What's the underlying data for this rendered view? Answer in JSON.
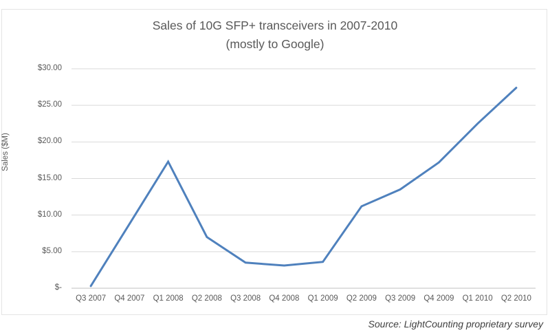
{
  "title": {
    "line1": "Sales of 10G SFP+ transceivers in 2007-2010",
    "line2": "(mostly to Google)"
  },
  "y_axis": {
    "label": "Sales ($M)",
    "tick_labels": [
      "$30.00",
      "$25.00",
      "$20.00",
      "$15.00",
      "$10.00",
      "$5.00",
      "$-"
    ],
    "tick_values": [
      30,
      25,
      20,
      15,
      10,
      5,
      0
    ]
  },
  "source_note": "Source: LightCounting proprietary survey",
  "colors": {
    "line": "#4F81BD",
    "gridline": "#D9D9D9",
    "axis_line": "#BFBFBF",
    "text": "#595959"
  },
  "chart_data": {
    "type": "line",
    "title": "Sales of 10G SFP+ transceivers in 2007-2010 (mostly to Google)",
    "categories": [
      "Q3 2007",
      "Q4 2007",
      "Q1 2008",
      "Q2 2008",
      "Q3 2008",
      "Q4 2008",
      "Q1 2009",
      "Q2 2009",
      "Q3 2009",
      "Q4 2009",
      "Q1 2010",
      "Q2 2010"
    ],
    "series": [
      {
        "name": "Sales ($M)",
        "values": [
          0.3,
          8.8,
          17.3,
          7.0,
          3.5,
          3.1,
          3.6,
          11.2,
          13.5,
          17.2,
          22.5,
          27.4
        ]
      }
    ],
    "xlabel": "",
    "ylabel": "Sales ($M)",
    "ylim": [
      0,
      30
    ],
    "y_tick_step": 5,
    "grid": true,
    "legend": false
  }
}
